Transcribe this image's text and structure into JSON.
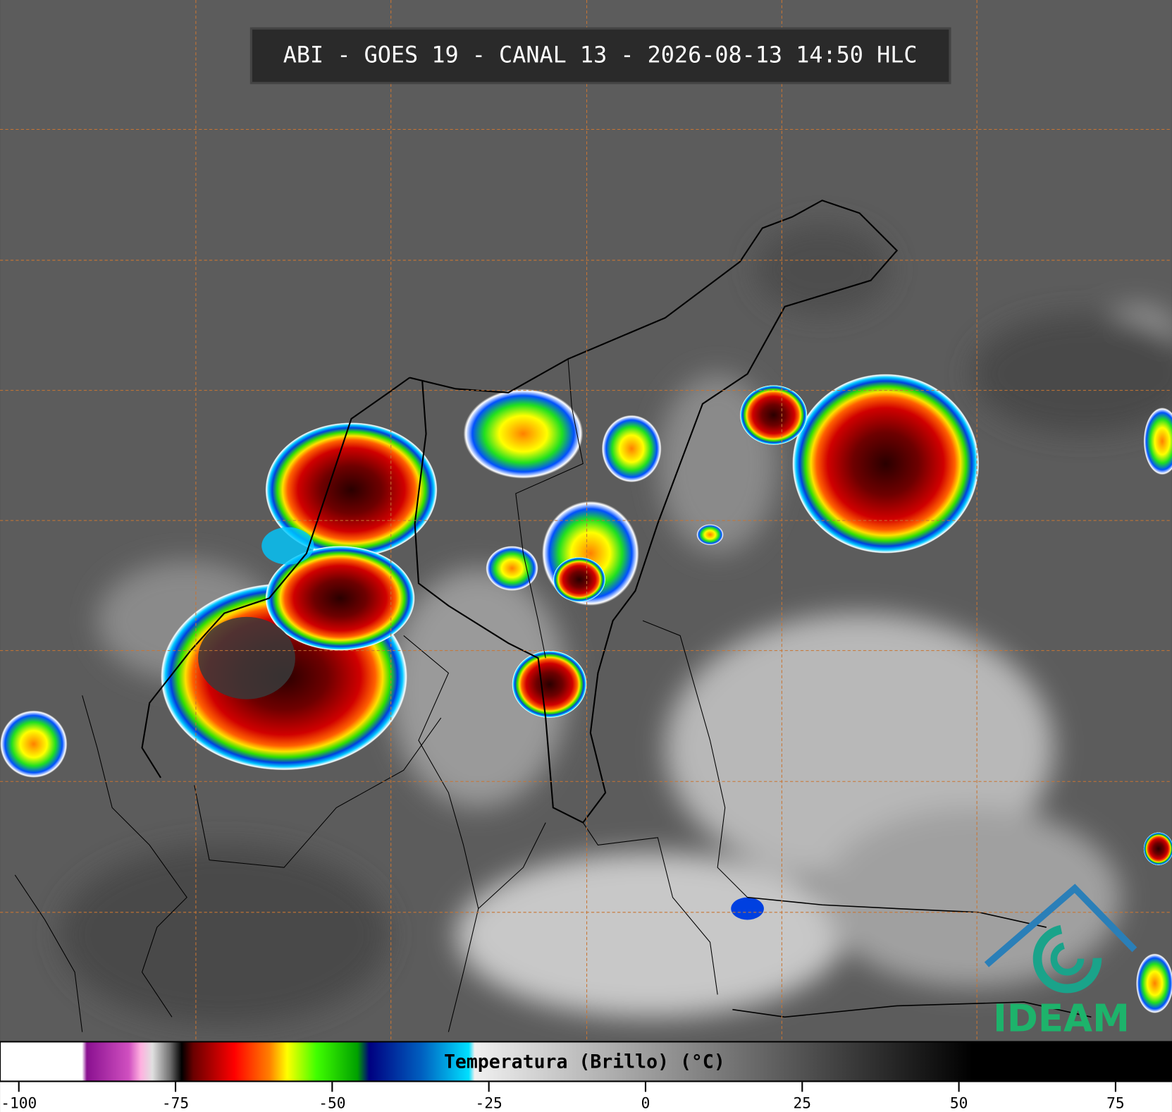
{
  "title": "ABI - GOES 19 - CANAL 13 - 2026-08-13 14:50 HLC",
  "colorbar": {
    "label": "Temperatura (Brillo) (°C)",
    "xlim": [
      -103,
      84
    ],
    "xticks": [
      -100,
      -75,
      -50,
      -25,
      0,
      25,
      50,
      75
    ]
  },
  "logo": "IDEAM"
}
